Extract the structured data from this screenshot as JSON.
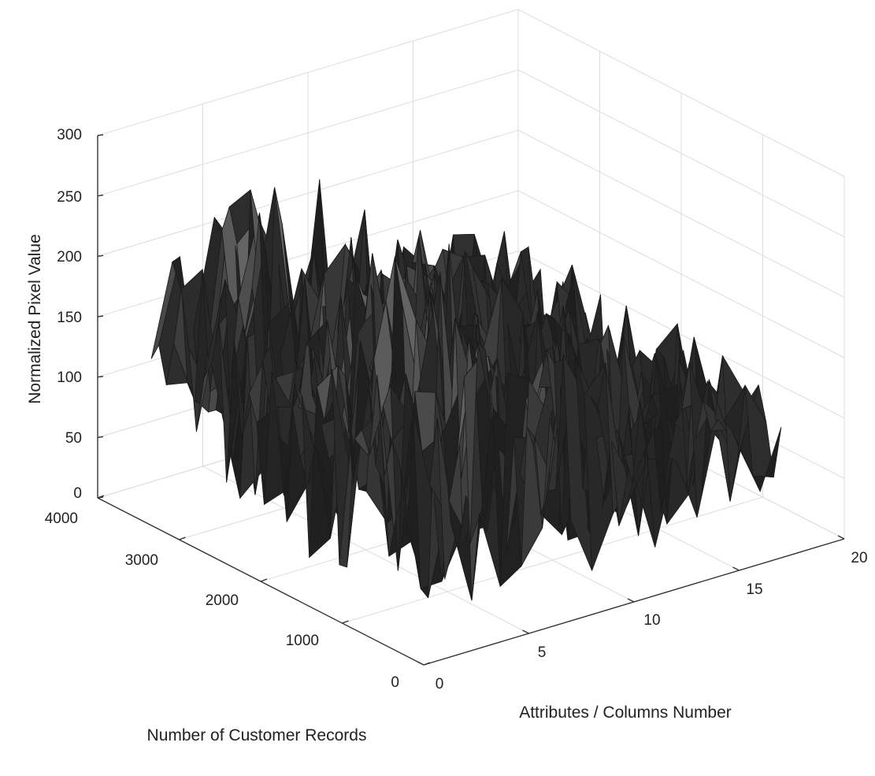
{
  "chart_data": {
    "type": "surface",
    "xlabel": "Attributes / Columns Number",
    "ylabel": "Number of Customer Records",
    "zlabel": "Normalized Pixel Value",
    "xlim": [
      0,
      20
    ],
    "ylim": [
      0,
      4000
    ],
    "zlim": [
      0,
      300
    ],
    "x_ticks": [
      "0",
      "5",
      "10",
      "15",
      "20"
    ],
    "y_ticks": [
      "0",
      "1000",
      "2000",
      "3000",
      "4000"
    ],
    "z_ticks": [
      "0",
      "50",
      "100",
      "150",
      "200",
      "250",
      "300"
    ],
    "grid": true,
    "colormap": "gray",
    "edge_color": "#1a1a1a",
    "series": [
      {
        "x_range": [
          1,
          17
        ],
        "y_range": [
          0,
          3600
        ],
        "typical_z_by_column": [
          {
            "x": 1,
            "z": 175
          },
          {
            "x": 2,
            "z": 180
          },
          {
            "x": 3,
            "z": 190
          },
          {
            "x": 4,
            "z": 250
          },
          {
            "x": 5,
            "z": 230
          },
          {
            "x": 6,
            "z": 210
          },
          {
            "x": 7,
            "z": 190
          },
          {
            "x": 8,
            "z": 220
          },
          {
            "x": 9,
            "z": 200
          },
          {
            "x": 10,
            "z": 140
          },
          {
            "x": 11,
            "z": 150
          },
          {
            "x": 12,
            "z": 160
          },
          {
            "x": 13,
            "z": 150
          },
          {
            "x": 14,
            "z": 140
          },
          {
            "x": 15,
            "z": 150
          },
          {
            "x": 16,
            "z": 140
          },
          {
            "x": 17,
            "z": 120
          }
        ]
      }
    ]
  }
}
